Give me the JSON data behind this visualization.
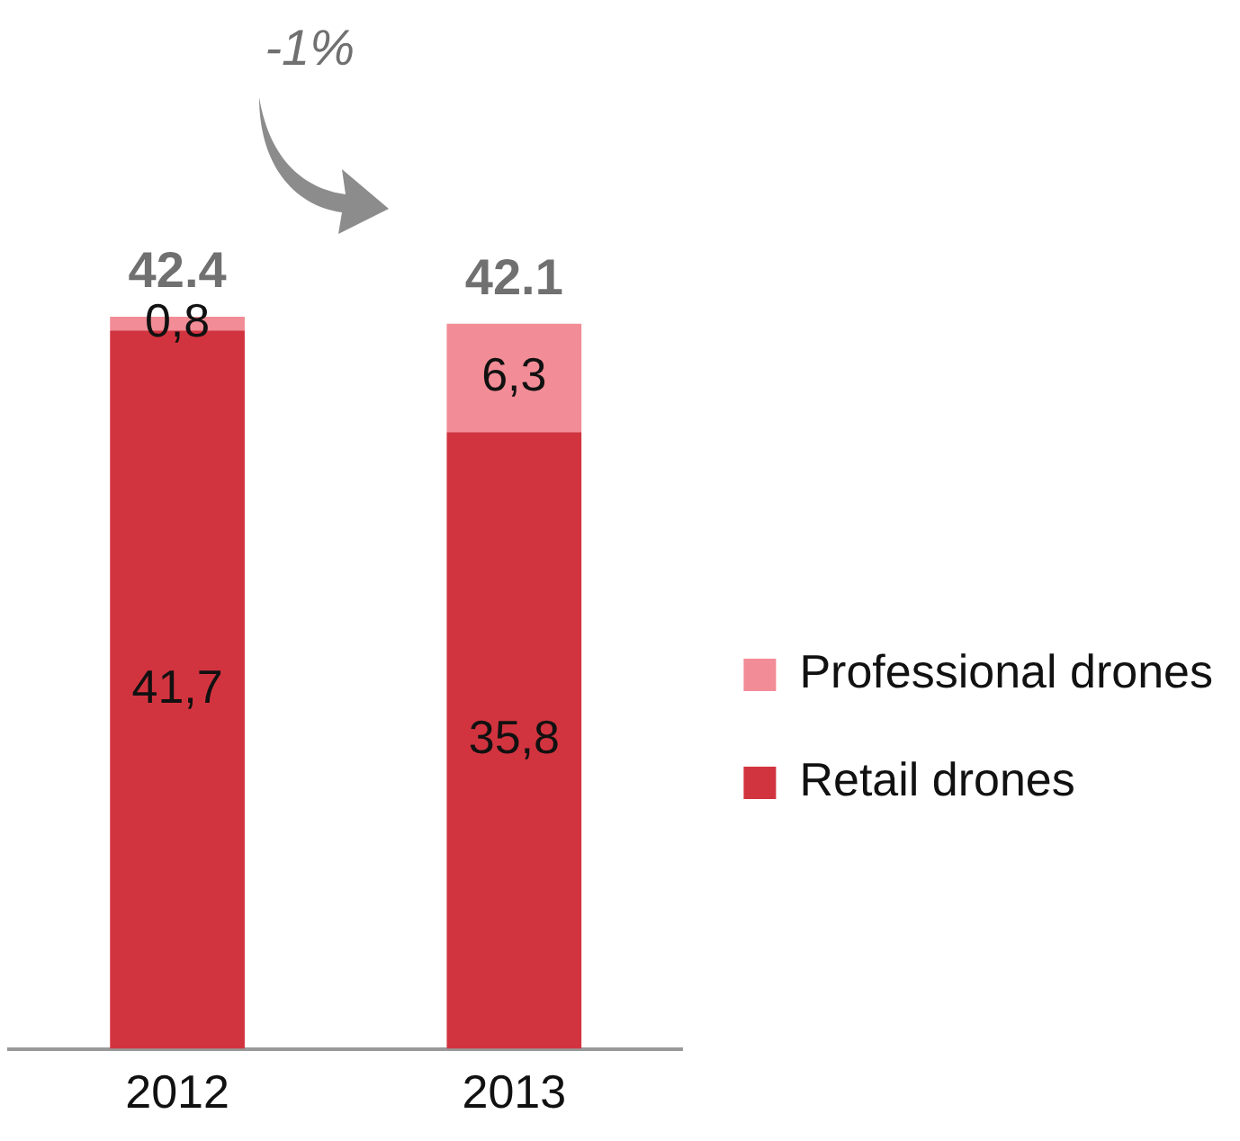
{
  "chart_data": {
    "type": "bar",
    "stacked": true,
    "categories": [
      "2012",
      "2013"
    ],
    "series": [
      {
        "name": "Retail drones",
        "color": "#d2343f",
        "values": [
          41.7,
          35.8
        ],
        "value_labels": [
          "41,7",
          "35,8"
        ]
      },
      {
        "name": "Professional drones",
        "color": "#f28c96",
        "values": [
          0.8,
          6.3
        ],
        "value_labels": [
          "0,8",
          "6,3"
        ]
      }
    ],
    "totals": [
      "42.4",
      "42.1"
    ],
    "annotations": [
      "-1%"
    ],
    "legend": "right",
    "grid": false,
    "tick_labels": "x"
  }
}
